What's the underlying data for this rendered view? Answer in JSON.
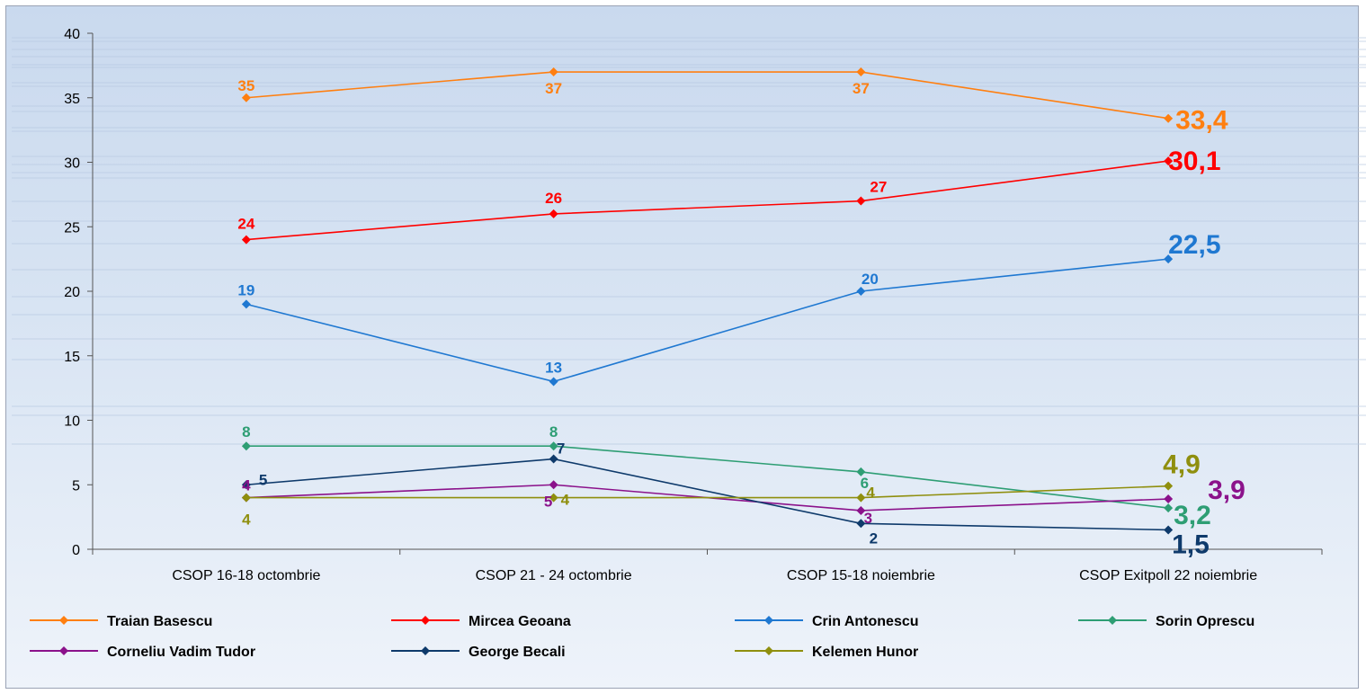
{
  "chart_data": {
    "type": "line",
    "categories": [
      "CSOP 16-18 octombrie",
      "CSOP 21 - 24 octombrie",
      "CSOP 15-18 noiembrie",
      "CSOP Exitpoll 22 noiembrie"
    ],
    "ylim": [
      0,
      40
    ],
    "yticks": [
      "0",
      "5",
      "10",
      "15",
      "20",
      "25",
      "30",
      "35",
      "40"
    ],
    "legend_position": "bottom",
    "grid": false,
    "series": [
      {
        "name": "Traian Basescu",
        "color": "#ff7f10",
        "values": [
          35,
          37,
          37,
          33.4
        ],
        "labels": [
          "35",
          "37",
          "37",
          "33,4"
        ]
      },
      {
        "name": "Mircea Geoana",
        "color": "#ff0000",
        "values": [
          24,
          26,
          27,
          30.1
        ],
        "labels": [
          "24",
          "26",
          "27",
          "30,1"
        ]
      },
      {
        "name": "Crin Antonescu",
        "color": "#1f78d1",
        "values": [
          19,
          13,
          20,
          22.5
        ],
        "labels": [
          "19",
          "13",
          "20",
          "22,5"
        ]
      },
      {
        "name": "Sorin Oprescu",
        "color": "#2e9e74",
        "values": [
          8,
          8,
          6,
          3.2
        ],
        "labels": [
          "8",
          "8",
          "6",
          "3,2"
        ]
      },
      {
        "name": "Corneliu Vadim Tudor",
        "color": "#8b128b",
        "values": [
          4,
          5,
          3,
          3.9
        ],
        "labels": [
          "4",
          "5",
          "3",
          "3,9"
        ]
      },
      {
        "name": "George Becali",
        "color": "#0e3a6b",
        "values": [
          5,
          7,
          2,
          1.5
        ],
        "labels": [
          "5",
          "7",
          "2",
          "1,5"
        ]
      },
      {
        "name": "Kelemen Hunor",
        "color": "#8f8f0e",
        "values": [
          4,
          4,
          4,
          4.9
        ],
        "labels": [
          "4",
          "4",
          "4",
          "4,9"
        ]
      }
    ]
  }
}
